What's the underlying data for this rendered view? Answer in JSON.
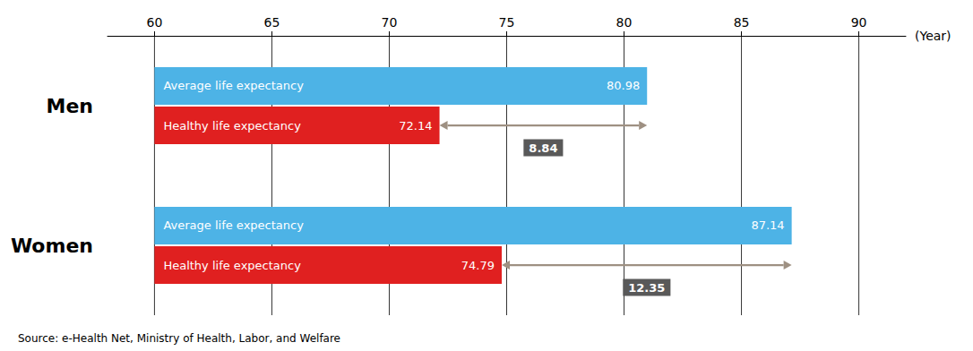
{
  "chart_data": {
    "type": "bar",
    "orientation": "horizontal",
    "categories": [
      "Men",
      "Women"
    ],
    "series": [
      {
        "name": "Average life expectancy",
        "color": "#4db3e6",
        "values": [
          80.98,
          87.14
        ]
      },
      {
        "name": "Healthy life expectancy",
        "color": "#e02020",
        "values": [
          72.14,
          74.79
        ]
      }
    ],
    "bar_start": 60,
    "differences": [
      "8.84",
      "12.35"
    ],
    "xlim": [
      58,
      92
    ],
    "xticks": [
      60,
      65,
      70,
      75,
      80,
      85,
      90
    ],
    "xlabel": "(Year)",
    "grid": true,
    "data_labels": true,
    "source": "Source: e-Health Net, Ministry of Health, Labor, and Welfare"
  }
}
